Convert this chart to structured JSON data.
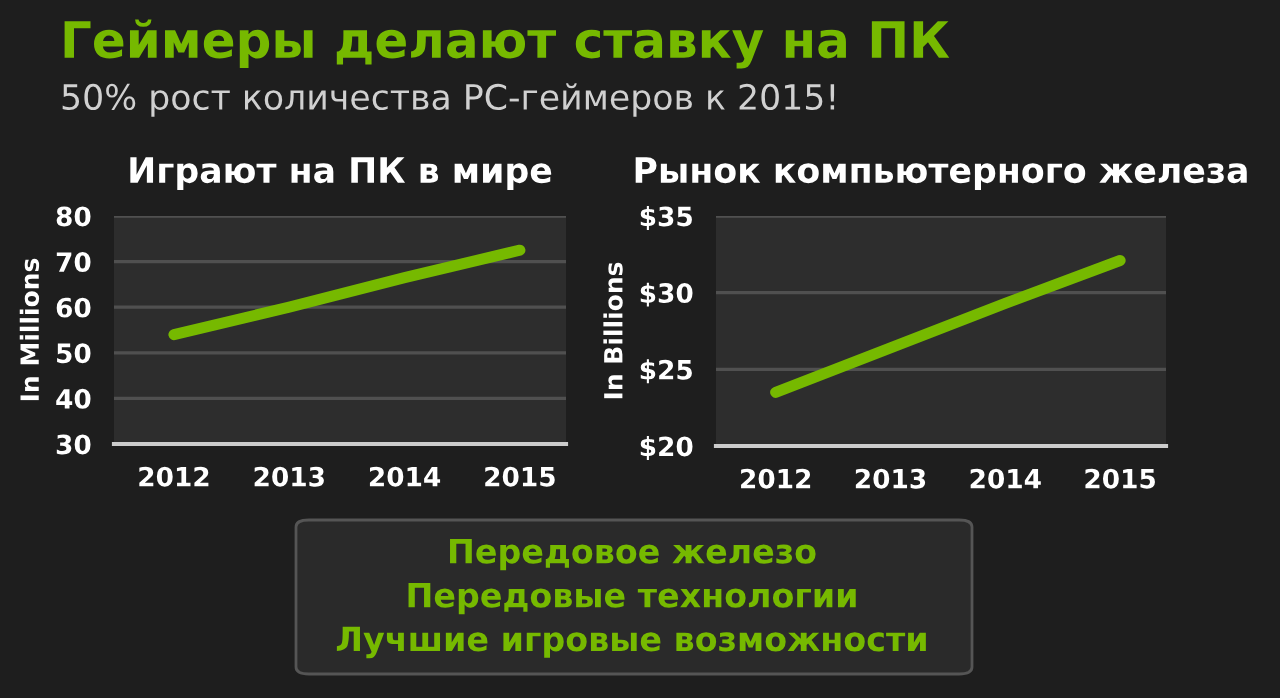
{
  "chart_data": [
    {
      "type": "other",
      "title": "Геймеры делают ставку на ПК",
      "subtitle": "50% рост количества PC-геймеров к 2015!",
      "annotations": [
        "Передовое железо",
        "Передовые технологии",
        "Лучшие игровые возможности"
      ]
    },
    {
      "type": "line",
      "title": "Играют на ПК в мире",
      "ylabel": "In Millions",
      "categories": [
        "2012",
        "2013",
        "2014",
        "2015"
      ],
      "series": [
        {
          "color": "#76b900",
          "values": [
            54,
            60,
            66.5,
            72.5
          ]
        }
      ],
      "ylim": [
        30,
        80
      ],
      "yticks": [
        30,
        40,
        50,
        60,
        70,
        80
      ],
      "grid": "y",
      "legend": false
    },
    {
      "type": "line",
      "title": "Рынок компьютерного железа",
      "ylabel": "In Billions",
      "categories": [
        "2012",
        "2013",
        "2014",
        "2015"
      ],
      "series": [
        {
          "color": "#76b900",
          "values": [
            23.5,
            26.4,
            29.3,
            32.1
          ]
        }
      ],
      "ylim": [
        20,
        35
      ],
      "yticks": [
        {
          "value": 20,
          "label": "$20"
        },
        {
          "value": 25,
          "label": "$25"
        },
        {
          "value": 30,
          "label": "$30"
        },
        {
          "value": 35,
          "label": "$35"
        }
      ],
      "grid": "y",
      "legend": false
    }
  ]
}
